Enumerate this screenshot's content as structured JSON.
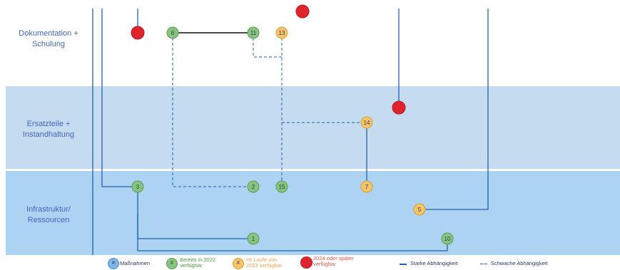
{
  "colors": {
    "band_top": "#ffffff",
    "band_mid": "#c5dcf0",
    "band_bottom": "#acd3f2",
    "label_text": "#4466b8",
    "strong_line": "#2360b0",
    "dashed_line": "#2360b0",
    "green": "#87c47f",
    "green_stroke": "#5a9c52",
    "yellow": "#f5c46a",
    "yellow_stroke": "#d9a038",
    "red": "#e0242e",
    "blue": "#7fb3e6",
    "legend_orange": "#f5a24a",
    "legend_red_text": "#e8524b"
  },
  "bands": [
    {
      "id": "dok",
      "label_lines": [
        "Dokumentation +",
        "Schulung"
      ]
    },
    {
      "id": "ers",
      "label_lines": [
        "Ersatzteile +",
        "Instandhaltung"
      ]
    },
    {
      "id": "inf",
      "label_lines": [
        "Infrastruktur/",
        "Ressourcen"
      ]
    }
  ],
  "nodes": [
    {
      "id": "6",
      "label": "6",
      "status": "green"
    },
    {
      "id": "11",
      "label": "11",
      "status": "green"
    },
    {
      "id": "13",
      "label": "13",
      "status": "yellow"
    },
    {
      "id": "14",
      "label": "14",
      "status": "yellow"
    },
    {
      "id": "3",
      "label": "3",
      "status": "green"
    },
    {
      "id": "2",
      "label": "2",
      "status": "green"
    },
    {
      "id": "15",
      "label": "15",
      "status": "green"
    },
    {
      "id": "7",
      "label": "7",
      "status": "yellow"
    },
    {
      "id": "5",
      "label": "5",
      "status": "yellow"
    },
    {
      "id": "1",
      "label": "1",
      "status": "green"
    },
    {
      "id": "10",
      "label": "10",
      "status": "green"
    },
    {
      "id": "r1",
      "label": "",
      "status": "red"
    },
    {
      "id": "r2",
      "label": "",
      "status": "red"
    },
    {
      "id": "r3",
      "label": "",
      "status": "red"
    }
  ],
  "legend": {
    "measures": {
      "symbol": "#",
      "text": "Maßnahmen"
    },
    "done": {
      "symbol": "#",
      "text_lines": [
        "Bereits in 2022",
        "verfügbar"
      ]
    },
    "during": {
      "symbol": "#",
      "text_lines": [
        "Im Laufe von",
        "2023 verfügbar"
      ]
    },
    "later": {
      "symbol": "",
      "text_lines": [
        "2024 oder später",
        "verfügbar"
      ]
    },
    "strong": "Starke Abhängigkeit",
    "weak": "Schwache Abhängigkeit"
  }
}
